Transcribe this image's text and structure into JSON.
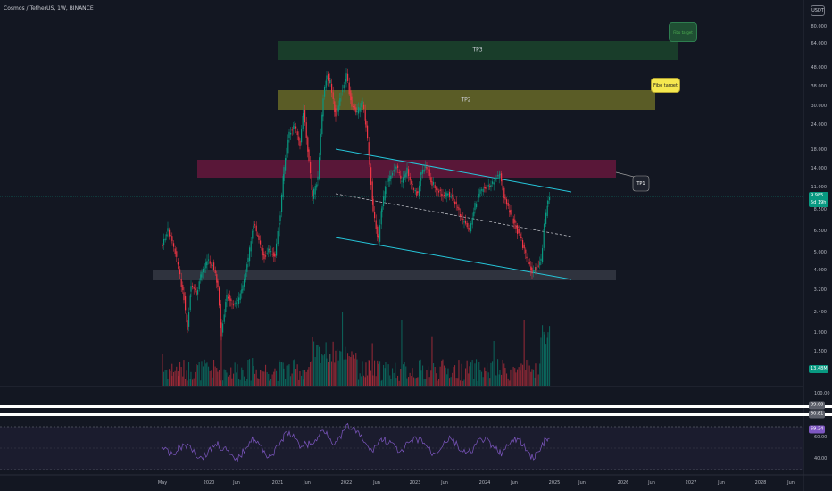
{
  "header": {
    "title": "Cosmos / TetherUS, 1W, BINANCE",
    "currency": "USDT"
  },
  "zones": {
    "tp3": "TP3",
    "tp2": "TP2",
    "tp1": "TP1"
  },
  "callouts": {
    "fibo": "Fibo target",
    "green": "Fibo target"
  },
  "price_axis": [
    "80.000",
    "64.000",
    "48.000",
    "38.000",
    "30.000",
    "24.000",
    "18.000",
    "14.000",
    "11.000",
    "8.500",
    "6.500",
    "5.000",
    "4.000",
    "3.200",
    "2.400",
    "1.900",
    "1.500"
  ],
  "current_price": {
    "value": "9.985",
    "countdown": "5d 19h"
  },
  "volume_badge": "13.48M",
  "rsi_axis": [
    "100.00",
    "60.00",
    "40.00"
  ],
  "rsi_badges": [
    "89.60",
    "80.81",
    "69.24"
  ],
  "time_axis": [
    "May",
    "2020",
    "Jun",
    "2021",
    "Jun",
    "2022",
    "Jun",
    "2023",
    "Jun",
    "2024",
    "Jun",
    "2025",
    "Jun",
    "2026",
    "Jun",
    "2027",
    "Jun",
    "2028",
    "Jun"
  ],
  "colors": {
    "bg": "#131722",
    "up": "#089981",
    "down": "#f23645",
    "channel": "#26c6da",
    "rsi": "#7e57c2"
  }
}
